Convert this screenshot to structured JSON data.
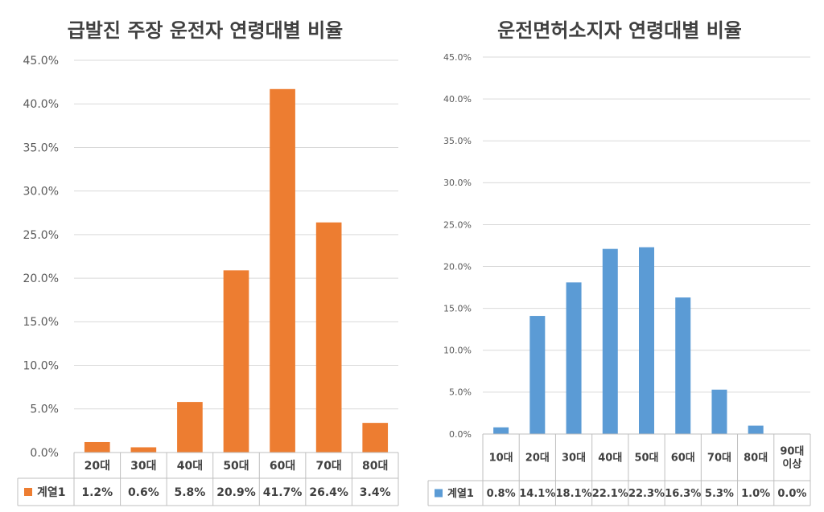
{
  "chart_data": [
    {
      "type": "bar",
      "title": "급발진 주장 운전자 연령대별 비율",
      "categories": [
        "20대",
        "30대",
        "40대",
        "50대",
        "60대",
        "70대",
        "80대"
      ],
      "series": [
        {
          "name": "계열1",
          "values": [
            1.2,
            0.6,
            5.8,
            20.9,
            41.7,
            26.4,
            3.4
          ],
          "labels": [
            "1.2%",
            "0.6%",
            "5.8%",
            "20.9%",
            "41.7%",
            "26.4%",
            "3.4%"
          ],
          "color": "#ED7D31"
        }
      ],
      "yticks": [
        "0.0%",
        "5.0%",
        "10.0%",
        "15.0%",
        "20.0%",
        "25.0%",
        "30.0%",
        "35.0%",
        "40.0%",
        "45.0%"
      ],
      "ylim": [
        0,
        45
      ],
      "grid": true,
      "legend": "data table"
    },
    {
      "type": "bar",
      "title": "운전면허소지자 연령대별 비율",
      "categories": [
        "10대",
        "20대",
        "30대",
        "40대",
        "50대",
        "60대",
        "70대",
        "80대",
        "90대\n이상"
      ],
      "series": [
        {
          "name": "계열1",
          "values": [
            0.8,
            14.1,
            18.1,
            22.1,
            22.3,
            16.3,
            5.3,
            1.0,
            0.0
          ],
          "labels": [
            "0.8%",
            "14.1%",
            "18.1%",
            "22.1%",
            "22.3%",
            "16.3%",
            "5.3%",
            "1.0%",
            "0.0%"
          ],
          "color": "#5B9BD5"
        }
      ],
      "yticks": [
        "0.0%",
        "5.0%",
        "10.0%",
        "15.0%",
        "20.0%",
        "25.0%",
        "30.0%",
        "35.0%",
        "40.0%",
        "45.0%"
      ],
      "ylim": [
        0,
        45
      ],
      "grid": true,
      "legend": "data table"
    }
  ]
}
